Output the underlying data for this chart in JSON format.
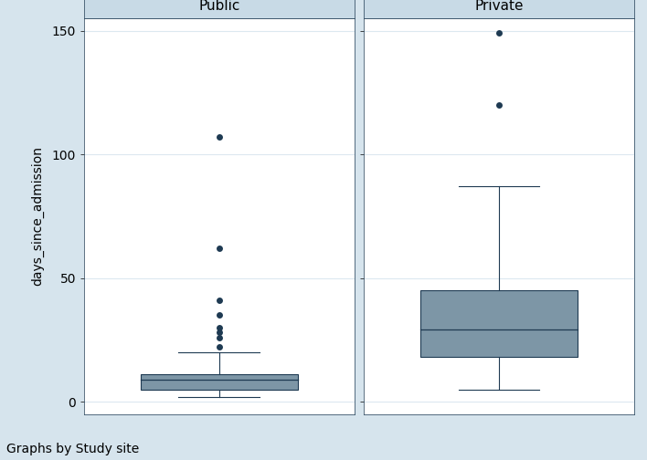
{
  "panels": [
    "Public",
    "Private"
  ],
  "public": {
    "whisker_low": 2,
    "q1": 5,
    "median": 9,
    "q3": 11,
    "whisker_high": 20,
    "outliers": [
      22,
      26,
      28,
      30,
      35,
      41,
      62,
      107
    ]
  },
  "private": {
    "whisker_low": 5,
    "q1": 18,
    "median": 29,
    "q3": 45,
    "whisker_high": 87,
    "outliers": [
      120,
      149
    ]
  },
  "ylim": [
    -5,
    155
  ],
  "yticks": [
    0,
    50,
    100,
    150
  ],
  "ylabel": "days_since_admission",
  "footer": "Graphs by Study site",
  "outer_bg_color": "#d6e4ed",
  "plot_bg_color": "#ffffff",
  "header_bg_color": "#d6e4ed",
  "box_face_color": "#7d96a6",
  "box_edge_color": "#1e3a52",
  "median_color": "#1e3a52",
  "whisker_color": "#1e3a52",
  "cap_color": "#1e3a52",
  "outlier_color": "#1e3a52",
  "grid_color": "#dce8f0",
  "spine_color": "#1e3a52",
  "panel_title_fontsize": 11,
  "ylabel_fontsize": 10,
  "tick_fontsize": 10,
  "footer_fontsize": 10
}
